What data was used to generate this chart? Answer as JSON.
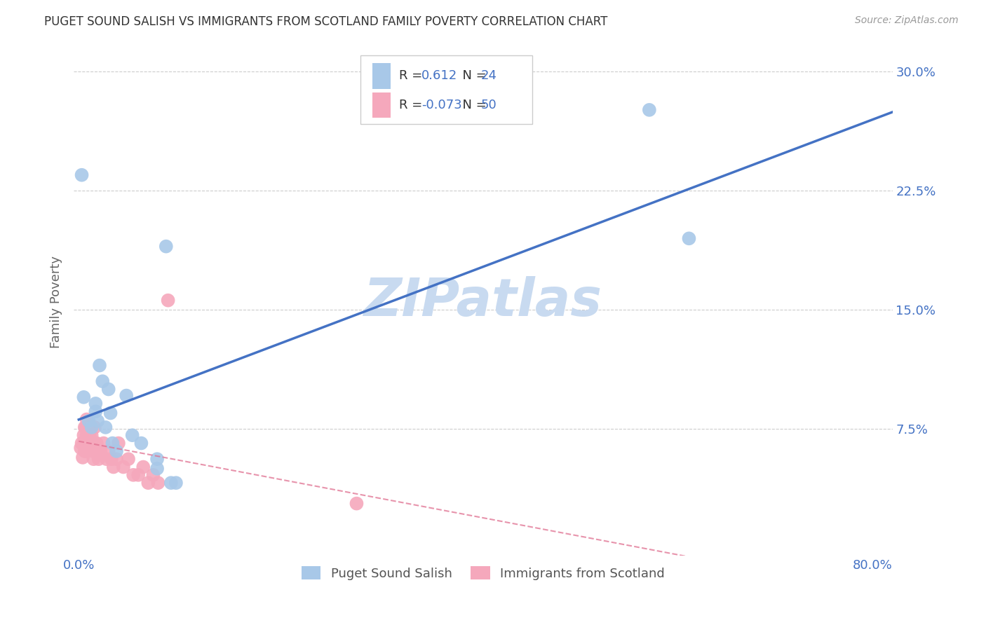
{
  "title": "PUGET SOUND SALISH VS IMMIGRANTS FROM SCOTLAND FAMILY POVERTY CORRELATION CHART",
  "source": "Source: ZipAtlas.com",
  "ylabel_label": "Family Poverty",
  "y_ticks": [
    0.075,
    0.15,
    0.225,
    0.3
  ],
  "y_tick_labels": [
    "7.5%",
    "15.0%",
    "22.5%",
    "30.0%"
  ],
  "xlim": [
    -0.005,
    0.82
  ],
  "ylim": [
    -0.005,
    0.315
  ],
  "legend1_label": "Puget Sound Salish",
  "legend2_label": "Immigrants from Scotland",
  "r1": "0.612",
  "n1": "24",
  "r2": "-0.073",
  "n2": "50",
  "blue_color": "#a8c8e8",
  "pink_color": "#f5a8bc",
  "line_blue": "#4472c4",
  "line_pink": "#e07090",
  "tick_color": "#4472c4",
  "watermark_color": "#c8daf0",
  "blue_scatter_x": [
    0.005,
    0.01,
    0.013,
    0.017,
    0.017,
    0.019,
    0.021,
    0.024,
    0.027,
    0.03,
    0.032,
    0.034,
    0.038,
    0.048,
    0.054,
    0.063,
    0.079,
    0.079,
    0.093,
    0.098,
    0.088,
    0.575,
    0.615,
    0.003
  ],
  "blue_scatter_y": [
    0.095,
    0.08,
    0.076,
    0.086,
    0.091,
    0.08,
    0.115,
    0.105,
    0.076,
    0.1,
    0.085,
    0.066,
    0.061,
    0.096,
    0.071,
    0.066,
    0.056,
    0.05,
    0.041,
    0.041,
    0.19,
    0.276,
    0.195,
    0.235
  ],
  "pink_scatter_x": [
    0.002,
    0.003,
    0.004,
    0.005,
    0.005,
    0.006,
    0.006,
    0.007,
    0.007,
    0.007,
    0.008,
    0.008,
    0.008,
    0.009,
    0.009,
    0.01,
    0.01,
    0.01,
    0.011,
    0.011,
    0.012,
    0.012,
    0.013,
    0.013,
    0.014,
    0.015,
    0.015,
    0.016,
    0.017,
    0.018,
    0.019,
    0.02,
    0.022,
    0.025,
    0.028,
    0.03,
    0.033,
    0.035,
    0.038,
    0.04,
    0.045,
    0.05,
    0.055,
    0.06,
    0.065,
    0.07,
    0.075,
    0.08,
    0.09,
    0.28
  ],
  "pink_scatter_y": [
    0.063,
    0.066,
    0.057,
    0.071,
    0.066,
    0.061,
    0.076,
    0.066,
    0.076,
    0.061,
    0.071,
    0.066,
    0.081,
    0.066,
    0.071,
    0.066,
    0.071,
    0.076,
    0.066,
    0.071,
    0.076,
    0.066,
    0.066,
    0.071,
    0.061,
    0.066,
    0.056,
    0.076,
    0.066,
    0.066,
    0.061,
    0.056,
    0.061,
    0.066,
    0.056,
    0.061,
    0.056,
    0.051,
    0.056,
    0.066,
    0.051,
    0.056,
    0.046,
    0.046,
    0.051,
    0.041,
    0.046,
    0.041,
    0.156,
    0.028
  ],
  "blue_line_x0": 0.0,
  "blue_line_x1": 0.82,
  "pink_line_x0": 0.0,
  "pink_line_x1": 0.82
}
